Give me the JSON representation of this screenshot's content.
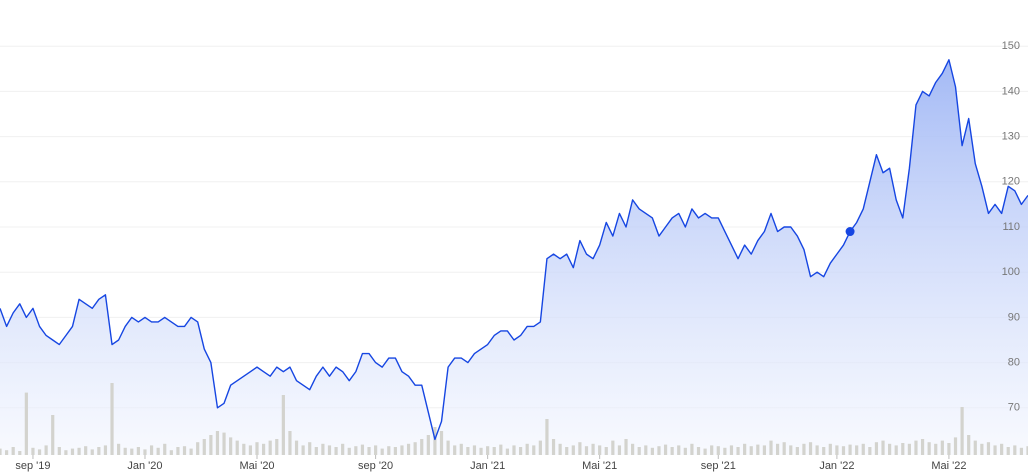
{
  "chart_data": {
    "type": "line",
    "series": [
      {
        "color": "#1646e2",
        "values": [
          92,
          88,
          91,
          93,
          90,
          92,
          88,
          86,
          85,
          84,
          86,
          88,
          94,
          93,
          92,
          94,
          95,
          84,
          85,
          88,
          90,
          89,
          90,
          89,
          89,
          90,
          89,
          88,
          88,
          90,
          89,
          83,
          80,
          70,
          71,
          75,
          76,
          77,
          78,
          79,
          78,
          77,
          79,
          78,
          79,
          76,
          75,
          74,
          77,
          79,
          77,
          79,
          78,
          76,
          78,
          82,
          82,
          80,
          79,
          81,
          81,
          78,
          77,
          75,
          75,
          69,
          63,
          67,
          79,
          81,
          81,
          80,
          82,
          83,
          84,
          86,
          87,
          87,
          85,
          86,
          88,
          88,
          89,
          103,
          104,
          103,
          104,
          101,
          107,
          104,
          103,
          106,
          111,
          108,
          113,
          110,
          116,
          114,
          113,
          112,
          108,
          110,
          112,
          113,
          110,
          114,
          112,
          113,
          112,
          112,
          109,
          106,
          103,
          106,
          104,
          107,
          109,
          113,
          109,
          110,
          110,
          108,
          105,
          99,
          100,
          99,
          102,
          104,
          106,
          109,
          111,
          114,
          120,
          126,
          122,
          123,
          116,
          112,
          123,
          137,
          140,
          139,
          142,
          144,
          147,
          141,
          128,
          134,
          124,
          119,
          113,
          115,
          113,
          119,
          118,
          115,
          117
        ]
      },
      {
        "type": "bar",
        "axis": "y2",
        "color": "#d3d3ce",
        "values": [
          8,
          6,
          10,
          5,
          78,
          9,
          7,
          12,
          50,
          10,
          6,
          8,
          9,
          11,
          7,
          10,
          12,
          90,
          14,
          9,
          8,
          10,
          7,
          12,
          9,
          14,
          6,
          10,
          11,
          8,
          16,
          20,
          25,
          30,
          28,
          22,
          18,
          14,
          12,
          16,
          14,
          18,
          20,
          75,
          30,
          18,
          12,
          16,
          10,
          14,
          12,
          10,
          14,
          9,
          11,
          13,
          10,
          12,
          8,
          11,
          10,
          12,
          14,
          16,
          20,
          25,
          35,
          30,
          18,
          12,
          14,
          10,
          12,
          9,
          11,
          10,
          13,
          8,
          12,
          10,
          14,
          12,
          18,
          45,
          20,
          14,
          10,
          12,
          16,
          11,
          14,
          12,
          10,
          18,
          12,
          20,
          14,
          10,
          12,
          9,
          11,
          13,
          10,
          12,
          9,
          14,
          10,
          8,
          12,
          11,
          9,
          12,
          10,
          14,
          11,
          13,
          12,
          18,
          14,
          16,
          12,
          10,
          14,
          16,
          12,
          10,
          14,
          12,
          11,
          13,
          12,
          14,
          10,
          16,
          18,
          14,
          12,
          15,
          14,
          18,
          20,
          16,
          14,
          18,
          15,
          22,
          60,
          25,
          18,
          14,
          16,
          12,
          14,
          10,
          12,
          9,
          11
        ]
      }
    ],
    "xlim": [
      0,
      156
    ],
    "xticks": [
      {
        "value": 5,
        "label": "sep '19"
      },
      {
        "value": 22,
        "label": "Jan '20"
      },
      {
        "value": 39,
        "label": "Mai '20"
      },
      {
        "value": 57,
        "label": "sep '20"
      },
      {
        "value": 74,
        "label": "Jan '21"
      },
      {
        "value": 91,
        "label": "Mai '21"
      },
      {
        "value": 109,
        "label": "sep '21"
      },
      {
        "value": 127,
        "label": "Jan '22"
      },
      {
        "value": 144,
        "label": "Mai '22"
      }
    ],
    "ylim": [
      60,
      160
    ],
    "yticks": [
      70,
      80,
      90,
      100,
      110,
      120,
      130,
      140,
      150
    ],
    "y2lim": [
      0,
      100
    ],
    "marker_index": 129,
    "grid": true
  }
}
